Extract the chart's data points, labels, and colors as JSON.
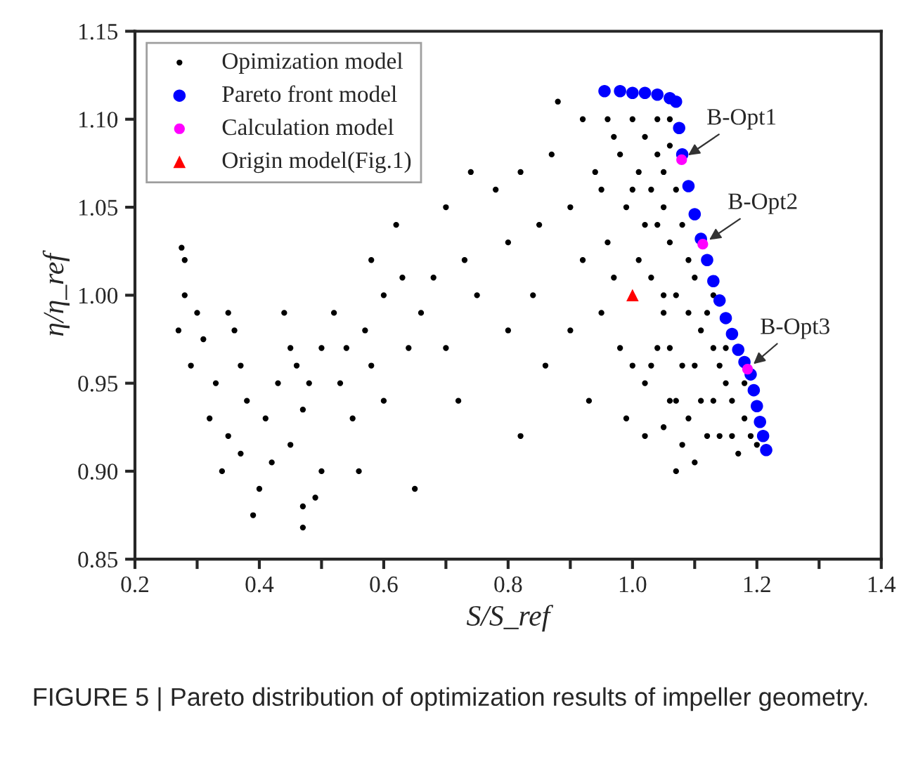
{
  "chart_data": {
    "type": "scatter",
    "xlabel": "S/S_ref",
    "ylabel": "η/η_ref",
    "xlim": [
      0.2,
      1.4
    ],
    "ylim": [
      0.85,
      1.15
    ],
    "xticks": [
      0.2,
      {
        "value": 0.3,
        "label": null
      },
      0.4,
      {
        "value": 0.5,
        "label": null
      },
      0.6,
      {
        "value": 0.7,
        "label": null
      },
      0.8,
      {
        "value": 0.9,
        "label": null
      },
      {
        "value": 1.0,
        "label": "1.0"
      },
      {
        "value": 1.1,
        "label": null
      },
      1.2,
      {
        "value": 1.3,
        "label": null
      },
      1.4
    ],
    "yticks": [
      0.85,
      {
        "value": 0.9,
        "label": "0.90"
      },
      0.95,
      {
        "value": 1.0,
        "label": "1.00"
      },
      1.05,
      {
        "value": 1.1,
        "label": "1.10"
      },
      1.15
    ],
    "grid": false,
    "legend": "top left",
    "series": [
      {
        "name": "Opimization model",
        "color": "#000000",
        "marker": "circle",
        "x": [
          0.275,
          0.28,
          0.28,
          0.27,
          0.29,
          0.3,
          0.31,
          0.33,
          0.32,
          0.35,
          0.36,
          0.37,
          0.38,
          0.35,
          0.37,
          0.34,
          0.39,
          0.4,
          0.42,
          0.41,
          0.43,
          0.45,
          0.44,
          0.46,
          0.47,
          0.45,
          0.47,
          0.47,
          0.49,
          0.5,
          0.48,
          0.5,
          0.52,
          0.53,
          0.55,
          0.56,
          0.54,
          0.57,
          0.58,
          0.6,
          0.6,
          0.58,
          0.62,
          0.63,
          0.65,
          0.64,
          0.66,
          0.68,
          0.7,
          0.7,
          0.72,
          0.73,
          0.74,
          0.75,
          0.78,
          0.8,
          0.8,
          0.82,
          0.82,
          0.84,
          0.85,
          0.86,
          0.87,
          0.88,
          0.9,
          0.9,
          0.92,
          0.92,
          0.93,
          0.94,
          0.95,
          0.96,
          0.97,
          0.98,
          0.99,
          1.0,
          1.01,
          1.02,
          1.03,
          1.04,
          1.05,
          1.06,
          1.07,
          0.96,
          0.98,
          1.0,
          1.02,
          1.04,
          1.06,
          1.01,
          1.03,
          1.05,
          1.07,
          1.02,
          1.04,
          1.06,
          1.08,
          1.09,
          1.03,
          1.05,
          1.07,
          1.09,
          1.1,
          1.11,
          1.12,
          1.04,
          1.06,
          1.08,
          1.1,
          1.13,
          1.14,
          1.07,
          1.09,
          1.11,
          1.13,
          1.15,
          1.16,
          1.12,
          1.14,
          1.16,
          1.18,
          1.17,
          1.19,
          1.2,
          1.18,
          1.08,
          1.1,
          1.05,
          0.99,
          0.97,
          0.95,
          1.0,
          1.02,
          1.15,
          1.13,
          1.05,
          1.06
        ],
        "values": [
          1.027,
          1.02,
          1.0,
          0.98,
          0.96,
          0.99,
          0.975,
          0.95,
          0.93,
          0.99,
          0.98,
          0.96,
          0.94,
          0.92,
          0.91,
          0.9,
          0.875,
          0.89,
          0.905,
          0.93,
          0.95,
          0.97,
          0.99,
          0.96,
          0.935,
          0.915,
          0.88,
          0.868,
          0.885,
          0.9,
          0.95,
          0.97,
          0.99,
          0.95,
          0.93,
          0.9,
          0.97,
          0.98,
          0.96,
          0.94,
          1.0,
          1.02,
          1.04,
          1.01,
          0.89,
          0.97,
          0.99,
          1.01,
          1.05,
          0.97,
          0.94,
          1.02,
          1.07,
          1.0,
          1.06,
          1.03,
          0.98,
          1.07,
          0.92,
          1.0,
          1.04,
          0.96,
          1.08,
          1.11,
          1.05,
          0.98,
          1.02,
          1.1,
          0.94,
          1.07,
          0.99,
          1.03,
          1.09,
          0.97,
          0.93,
          1.06,
          1.02,
          0.92,
          0.96,
          1.08,
          1.0,
          0.94,
          0.9,
          1.1,
          1.08,
          1.1,
          1.09,
          1.1,
          1.1,
          1.07,
          1.06,
          1.07,
          1.06,
          1.04,
          1.04,
          1.03,
          1.04,
          1.02,
          1.01,
          0.99,
          1.0,
          0.99,
          1.01,
          0.98,
          0.99,
          0.97,
          0.97,
          0.96,
          0.96,
          0.97,
          0.96,
          0.94,
          0.93,
          0.94,
          0.94,
          0.95,
          0.94,
          0.92,
          0.92,
          0.92,
          0.93,
          0.91,
          0.92,
          0.915,
          0.95,
          0.915,
          0.905,
          0.925,
          1.05,
          1.01,
          1.06,
          0.96,
          0.95,
          0.97,
          1.0,
          1.05,
          1.085
        ]
      },
      {
        "name": "Pareto front model",
        "color": "#0000ff",
        "marker": "circle",
        "x": [
          0.955,
          0.98,
          1.0,
          1.02,
          1.04,
          1.06,
          1.07,
          1.075,
          1.08,
          1.09,
          1.1,
          1.11,
          1.12,
          1.13,
          1.14,
          1.15,
          1.16,
          1.17,
          1.18,
          1.19,
          1.195,
          1.2,
          1.205,
          1.21,
          1.215
        ],
        "values": [
          1.116,
          1.116,
          1.115,
          1.115,
          1.114,
          1.112,
          1.11,
          1.095,
          1.08,
          1.062,
          1.046,
          1.032,
          1.02,
          1.008,
          0.997,
          0.987,
          0.978,
          0.969,
          0.962,
          0.955,
          0.946,
          0.937,
          0.928,
          0.92,
          0.912
        ]
      },
      {
        "name": "Calculation model",
        "color": "#ff00ff",
        "marker": "circle",
        "x": [
          1.079,
          1.113,
          1.185
        ],
        "values": [
          1.077,
          1.029,
          0.958
        ]
      },
      {
        "name": "Origin model(Fig.1)",
        "color": "#ff0000",
        "marker": "triangle",
        "x": [
          1.0
        ],
        "values": [
          1.0
        ]
      }
    ],
    "annotations": [
      {
        "text": "B-Opt1",
        "x": 1.079,
        "y": 1.077
      },
      {
        "text": "B-Opt2",
        "x": 1.113,
        "y": 1.029
      },
      {
        "text": "B-Opt3",
        "x": 1.185,
        "y": 0.958
      },
      "FIGURE 5 | Pareto distribution of optimization results of impeller geometry."
    ]
  }
}
